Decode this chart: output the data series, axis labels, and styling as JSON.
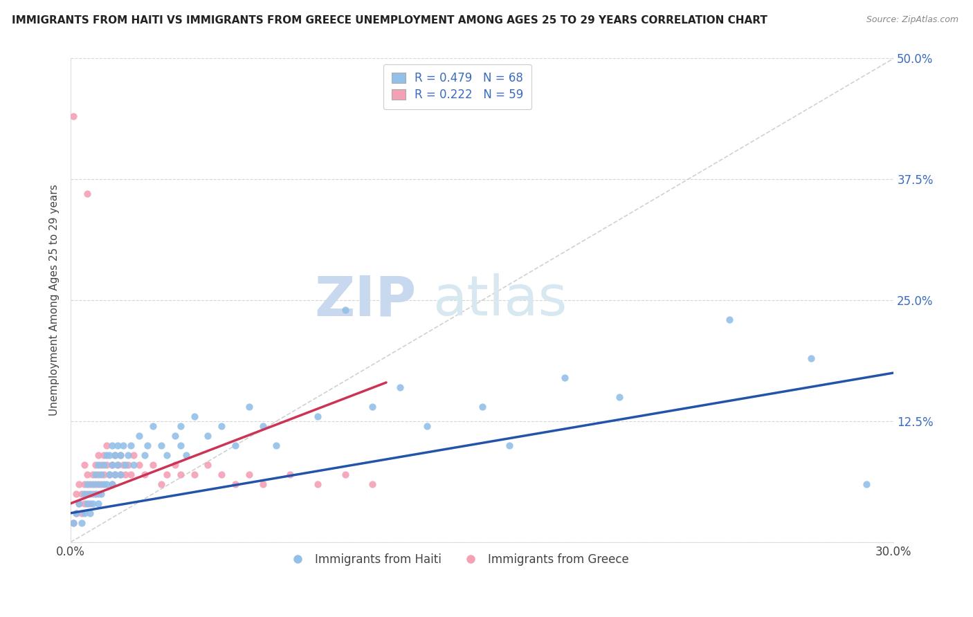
{
  "title": "IMMIGRANTS FROM HAITI VS IMMIGRANTS FROM GREECE UNEMPLOYMENT AMONG AGES 25 TO 29 YEARS CORRELATION CHART",
  "source": "Source: ZipAtlas.com",
  "ylabel": "Unemployment Among Ages 25 to 29 years",
  "xlim": [
    0.0,
    0.3
  ],
  "ylim": [
    0.0,
    0.5
  ],
  "xticks": [
    0.0,
    0.05,
    0.1,
    0.15,
    0.2,
    0.25,
    0.3
  ],
  "yticks": [
    0.0,
    0.125,
    0.25,
    0.375,
    0.5
  ],
  "haiti_R": 0.479,
  "haiti_N": 68,
  "greece_R": 0.222,
  "greece_N": 59,
  "haiti_color": "#92c0e8",
  "greece_color": "#f4a0b5",
  "haiti_line_color": "#2255aa",
  "greece_line_color": "#cc3355",
  "watermark_zip": "ZIP",
  "watermark_atlas": "atlas",
  "legend_haiti_label": "Immigrants from Haiti",
  "legend_greece_label": "Immigrants from Greece",
  "background_color": "#ffffff",
  "grid_color": "#cccccc",
  "haiti_scatter_x": [
    0.001,
    0.002,
    0.003,
    0.004,
    0.005,
    0.005,
    0.006,
    0.006,
    0.007,
    0.007,
    0.008,
    0.008,
    0.009,
    0.009,
    0.01,
    0.01,
    0.01,
    0.011,
    0.011,
    0.012,
    0.012,
    0.013,
    0.013,
    0.014,
    0.014,
    0.015,
    0.015,
    0.015,
    0.016,
    0.016,
    0.017,
    0.017,
    0.018,
    0.018,
    0.019,
    0.02,
    0.021,
    0.022,
    0.023,
    0.025,
    0.027,
    0.028,
    0.03,
    0.033,
    0.035,
    0.038,
    0.04,
    0.04,
    0.042,
    0.045,
    0.05,
    0.055,
    0.06,
    0.065,
    0.07,
    0.075,
    0.09,
    0.1,
    0.11,
    0.12,
    0.13,
    0.15,
    0.16,
    0.18,
    0.2,
    0.24,
    0.27,
    0.29
  ],
  "haiti_scatter_y": [
    0.02,
    0.03,
    0.04,
    0.02,
    0.03,
    0.05,
    0.04,
    0.06,
    0.03,
    0.05,
    0.04,
    0.06,
    0.05,
    0.07,
    0.04,
    0.06,
    0.08,
    0.05,
    0.07,
    0.06,
    0.08,
    0.06,
    0.09,
    0.07,
    0.09,
    0.06,
    0.08,
    0.1,
    0.07,
    0.09,
    0.08,
    0.1,
    0.07,
    0.09,
    0.1,
    0.08,
    0.09,
    0.1,
    0.08,
    0.11,
    0.09,
    0.1,
    0.12,
    0.1,
    0.09,
    0.11,
    0.1,
    0.12,
    0.09,
    0.13,
    0.11,
    0.12,
    0.1,
    0.14,
    0.12,
    0.1,
    0.13,
    0.24,
    0.14,
    0.16,
    0.12,
    0.14,
    0.1,
    0.17,
    0.15,
    0.23,
    0.19,
    0.06
  ],
  "greece_scatter_x": [
    0.001,
    0.001,
    0.002,
    0.002,
    0.003,
    0.003,
    0.004,
    0.004,
    0.005,
    0.005,
    0.005,
    0.006,
    0.006,
    0.006,
    0.007,
    0.007,
    0.008,
    0.008,
    0.009,
    0.009,
    0.01,
    0.01,
    0.01,
    0.011,
    0.011,
    0.012,
    0.012,
    0.013,
    0.013,
    0.014,
    0.015,
    0.015,
    0.016,
    0.016,
    0.017,
    0.018,
    0.018,
    0.019,
    0.02,
    0.021,
    0.022,
    0.023,
    0.025,
    0.027,
    0.03,
    0.033,
    0.035,
    0.038,
    0.04,
    0.045,
    0.05,
    0.055,
    0.06,
    0.065,
    0.07,
    0.08,
    0.09,
    0.1,
    0.11
  ],
  "greece_scatter_y": [
    0.02,
    0.44,
    0.03,
    0.05,
    0.04,
    0.06,
    0.03,
    0.05,
    0.04,
    0.06,
    0.08,
    0.05,
    0.07,
    0.36,
    0.04,
    0.06,
    0.05,
    0.07,
    0.06,
    0.08,
    0.05,
    0.07,
    0.09,
    0.06,
    0.08,
    0.07,
    0.09,
    0.08,
    0.1,
    0.07,
    0.06,
    0.08,
    0.07,
    0.09,
    0.08,
    0.07,
    0.09,
    0.08,
    0.07,
    0.08,
    0.07,
    0.09,
    0.08,
    0.07,
    0.08,
    0.06,
    0.07,
    0.08,
    0.07,
    0.07,
    0.08,
    0.07,
    0.06,
    0.07,
    0.06,
    0.07,
    0.06,
    0.07,
    0.06
  ],
  "haiti_trend_x": [
    0.0,
    0.3
  ],
  "haiti_trend_y": [
    0.03,
    0.175
  ],
  "greece_trend_x": [
    0.0,
    0.115
  ],
  "greece_trend_y": [
    0.04,
    0.165
  ]
}
